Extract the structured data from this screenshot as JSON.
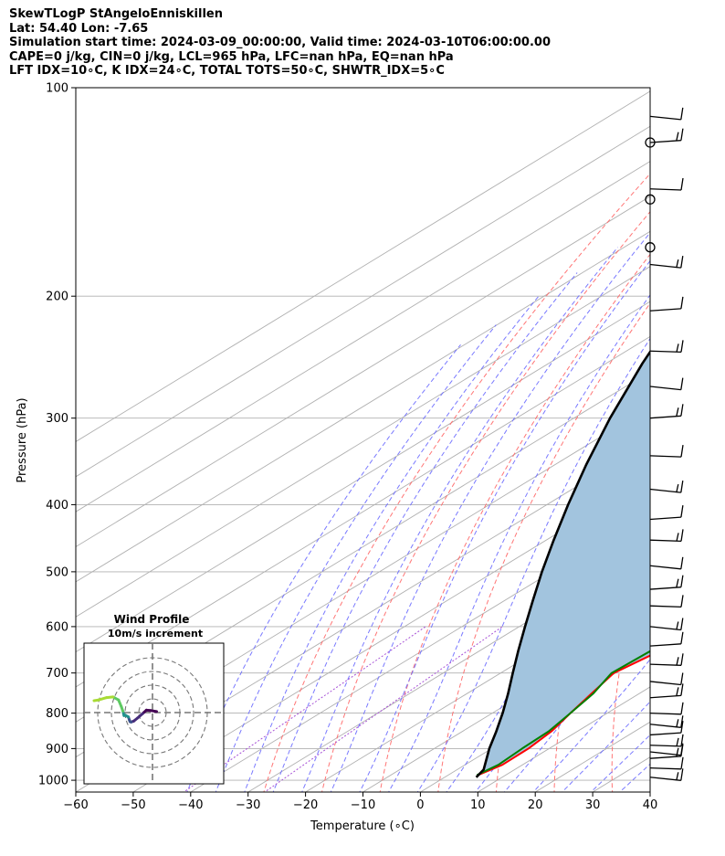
{
  "header": {
    "title": "SkewTLogP StAngeloEnniskillen",
    "latlon": "Lat: 54.40   Lon: -7.65",
    "times": "Simulation start time: 2024-03-09_00:00:00, Valid time: 2024-03-10T06:00:00.00",
    "indices1": "CAPE=0 j/kg, CIN=0 j/kg, LCL=965 hPa, LFC=nan hPa, EQ=nan hPa",
    "indices2": "LFT IDX=10∘C, K IDX=24∘C, TOTAL TOTS=50∘C, SHWTR_IDX=5∘C"
  },
  "colors": {
    "temperature": "#ff0000",
    "dewpoint": "#008000",
    "parcel": "#000000",
    "cape_fill": "#a2c4de",
    "dry_adiabat": "#ff6666",
    "moist_adiabat": "#6a6aff",
    "isotherm": "#b0b0b0",
    "mixing_ratio": "#a650d6",
    "grid": "#b0b0b0"
  },
  "chart_data": {
    "type": "skewt",
    "title": "SkewTLogP StAngeloEnniskillen",
    "xlabel": "Temperature (∘C)",
    "ylabel": "Pressure (hPa)",
    "xlim": [
      -60,
      40
    ],
    "ylim": [
      1040,
      100
    ],
    "xticks": [
      "−60",
      "−50",
      "−40",
      "−30",
      "−20",
      "−10",
      "0",
      "10",
      "20",
      "30",
      "40"
    ],
    "xtick_values": [
      -60,
      -50,
      -40,
      -30,
      -20,
      -10,
      0,
      10,
      20,
      30,
      40
    ],
    "yticks": [
      "1000",
      "900",
      "800",
      "700",
      "600",
      "500",
      "400",
      "300",
      "200",
      "100"
    ],
    "ytick_values": [
      1000,
      900,
      800,
      700,
      600,
      500,
      400,
      300,
      200,
      100
    ],
    "series": [
      {
        "name": "Temperature",
        "points": [
          [
            983,
            5.2
          ],
          [
            950,
            6.5
          ],
          [
            900,
            6.4
          ],
          [
            850,
            5.5
          ],
          [
            800,
            3.6
          ],
          [
            750,
            1.7
          ],
          [
            700,
            -0.3
          ],
          [
            650,
            1.4
          ],
          [
            600,
            2.1
          ],
          [
            560,
            1.9
          ],
          [
            500,
            -0.3
          ],
          [
            450,
            -3.3
          ],
          [
            400,
            -8.6
          ],
          [
            350,
            -14.2
          ],
          [
            300,
            -19.8
          ],
          [
            290,
            -20.3
          ],
          [
            270,
            -16.0
          ],
          [
            260,
            -14.0
          ],
          [
            240,
            -8.0
          ],
          [
            230,
            -3.9
          ],
          [
            210,
            0.0
          ],
          [
            200,
            2.5
          ],
          [
            185,
            1.2
          ],
          [
            175,
            1.0
          ],
          [
            165,
            1.6
          ],
          [
            150,
            5.0
          ],
          [
            140,
            6.7
          ],
          [
            125,
            8.4
          ],
          [
            115,
            9.2
          ],
          [
            100,
            12.1
          ]
        ]
      },
      {
        "name": "Dewpoint",
        "points": [
          [
            983,
            5.0
          ],
          [
            950,
            5.8
          ],
          [
            900,
            5.3
          ],
          [
            850,
            5.0
          ],
          [
            800,
            3.6
          ],
          [
            750,
            2.0
          ],
          [
            700,
            -0.7
          ],
          [
            650,
            -0.2
          ],
          [
            600,
            -0.1
          ],
          [
            560,
            -2.8
          ],
          [
            500,
            -5.8
          ],
          [
            450,
            -10.5
          ],
          [
            400,
            -15.0
          ],
          [
            350,
            -20.4
          ],
          [
            320,
            -24.0
          ],
          [
            300,
            -26.0
          ],
          [
            280,
            -28.6
          ],
          [
            260,
            -32.2
          ],
          [
            240,
            -31.8
          ],
          [
            225,
            -34.3
          ],
          [
            210,
            -35.6
          ],
          [
            200,
            -38.2
          ],
          [
            190,
            -37.5
          ],
          [
            175,
            -38.1
          ],
          [
            165,
            -39.6
          ],
          [
            145,
            -35.2
          ],
          [
            125,
            -31.6
          ],
          [
            100,
            -31.3
          ]
        ]
      },
      {
        "name": "Parcel",
        "points": [
          [
            990,
            5.5
          ],
          [
            965,
            4.6
          ],
          [
            900,
            -0.4
          ],
          [
            850,
            -4.1
          ],
          [
            800,
            -8.2
          ],
          [
            750,
            -12.8
          ],
          [
            700,
            -17.9
          ],
          [
            650,
            -23.3
          ],
          [
            600,
            -29.0
          ],
          [
            550,
            -35.1
          ],
          [
            500,
            -41.7
          ],
          [
            450,
            -48.7
          ],
          [
            400,
            -56.3
          ],
          [
            350,
            -64.6
          ],
          [
            300,
            -73.7
          ],
          [
            250,
            -83.7
          ],
          [
            200,
            -95.0
          ],
          [
            150,
            -108.0
          ],
          [
            125,
            -115.5
          ],
          [
            100,
            -123.8
          ]
        ]
      }
    ],
    "winds": {
      "label": "Wind barbs",
      "pressures": [
        990,
        960,
        930,
        910,
        890,
        860,
        830,
        800,
        760,
        720,
        680,
        640,
        600,
        560,
        530,
        490,
        450,
        420,
        380,
        340,
        300,
        270,
        240,
        210,
        180,
        140,
        120,
        110
      ],
      "count": 28
    },
    "hodograph": {
      "title": "Wind Profile",
      "subtitle": "10m/s increment",
      "u": [
        1.2,
        -0.5,
        -1.8,
        -2.9,
        -4.4,
        -5.5,
        -6.3,
        -6.6,
        -6.8,
        -7.1,
        -7.9,
        -8.4,
        -8.7,
        -9.2,
        -10.0,
        -11.6,
        -13.5,
        -15.9,
        -17.2
      ],
      "v": [
        0.3,
        0.6,
        0.7,
        -0.3,
        -1.6,
        -2.5,
        -2.8,
        -2.7,
        -2.2,
        -1.3,
        -0.8,
        -0.9,
        0.4,
        1.8,
        3.7,
        4.6,
        4.4,
        3.7,
        3.5
      ],
      "rings_ms": [
        10,
        20,
        30,
        40
      ]
    },
    "calm_markers": 3
  }
}
